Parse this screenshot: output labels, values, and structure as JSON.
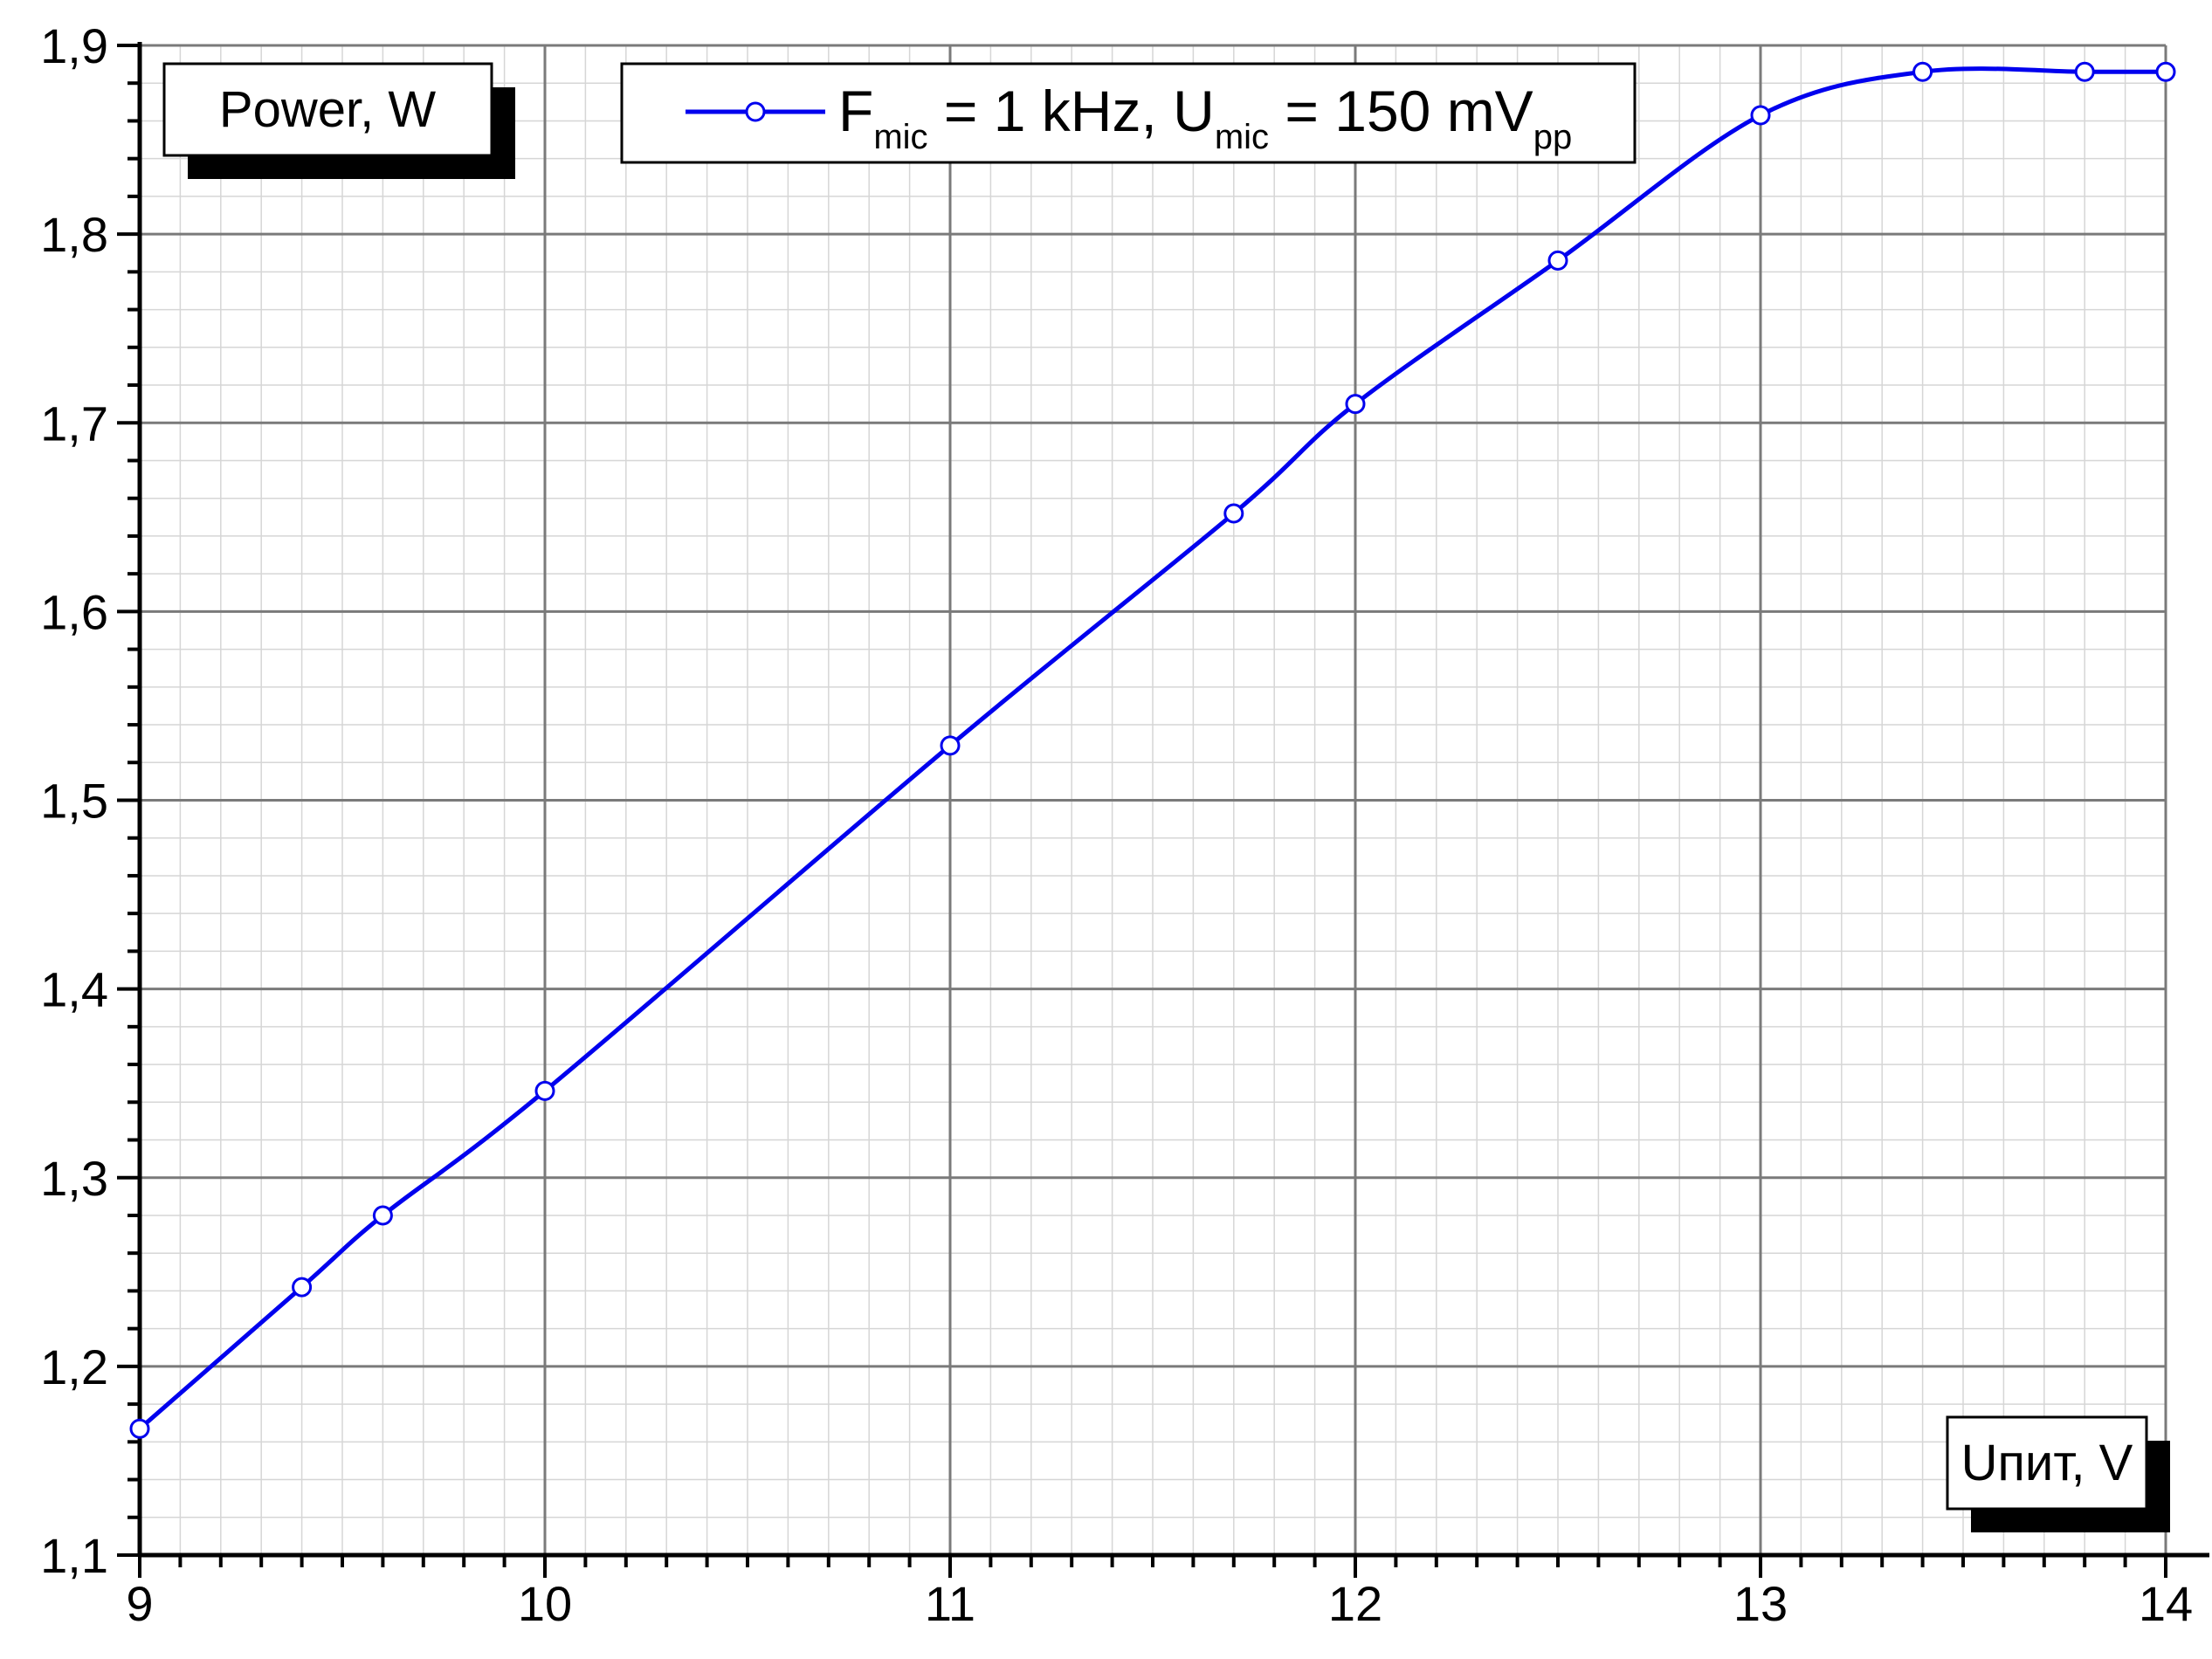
{
  "chart_data": {
    "type": "line",
    "ylabel": "Power, W",
    "xlabel": "Uпит, V",
    "xlim": [
      9,
      14
    ],
    "ylim": [
      1.1,
      1.9
    ],
    "x_ticks": [
      "9",
      "10",
      "11",
      "12",
      "13",
      "14"
    ],
    "y_ticks": [
      "1,1",
      "1,2",
      "1,3",
      "1,4",
      "1,5",
      "1,6",
      "1,7",
      "1,8",
      "1,9"
    ],
    "grid": true,
    "legend_position": "top-center",
    "legend": {
      "prefix": "F",
      "sub1": "mic",
      "mid": " = 1 kHz, U",
      "sub2": "mic",
      "suffix": " = 150 mV",
      "sub3": "pp"
    },
    "series": [
      {
        "name": "F mic = 1 kHz, U mic = 150 mV pp",
        "color": "#0000ee",
        "marker": "open-circle",
        "smooth": true,
        "x": [
          9.0,
          9.4,
          9.6,
          10.0,
          11.0,
          11.7,
          12.0,
          12.5,
          13.0,
          13.4,
          13.8,
          14.0
        ],
        "y": [
          1.167,
          1.242,
          1.28,
          1.346,
          1.529,
          1.652,
          1.71,
          1.786,
          1.863,
          1.886,
          1.886,
          1.886
        ]
      }
    ]
  }
}
